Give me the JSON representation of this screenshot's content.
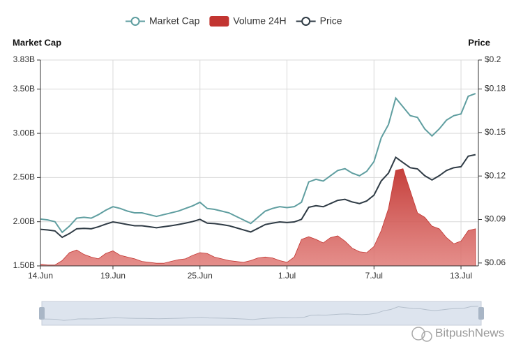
{
  "chart_data": {
    "type": "line",
    "y_label": "Market Cap",
    "y2_label": "Price",
    "x": [
      0,
      0.5,
      1,
      1.5,
      2,
      2.5,
      3,
      3.5,
      4,
      4.5,
      5,
      5.5,
      6,
      6.5,
      7,
      7.5,
      8,
      8.5,
      9,
      9.5,
      10,
      10.5,
      11,
      11.5,
      12,
      12.5,
      13,
      13.5,
      14,
      14.5,
      15,
      15.5,
      16,
      16.5,
      17,
      17.5,
      18,
      18.5,
      19,
      19.5,
      20,
      20.5,
      21,
      21.5,
      22,
      22.5,
      23,
      23.5,
      24,
      24.5,
      25,
      25.5,
      26,
      26.5,
      27,
      27.5,
      28,
      28.5,
      29,
      29.5,
      30
    ],
    "xlim": [
      0,
      30.2
    ],
    "xticks": [
      {
        "value": 0,
        "label": "14.Jun"
      },
      {
        "value": 5,
        "label": "19.Jun"
      },
      {
        "value": 11,
        "label": "25.Jun"
      },
      {
        "value": 17,
        "label": "1.Jul"
      },
      {
        "value": 23,
        "label": "7.Jul"
      },
      {
        "value": 29,
        "label": "13.Jul"
      }
    ],
    "ylim": [
      1.5,
      3.83
    ],
    "yticks": [
      {
        "value": 1.5,
        "label": "1.50B"
      },
      {
        "value": 2.0,
        "label": "2.00B"
      },
      {
        "value": 2.5,
        "label": "2.50B"
      },
      {
        "value": 3.0,
        "label": "3.00B"
      },
      {
        "value": 3.5,
        "label": "3.50B"
      },
      {
        "value": 3.83,
        "label": "3.83B"
      }
    ],
    "y2lim": [
      0.058,
      0.2
    ],
    "y2ticks": [
      {
        "value": 0.06,
        "label": "$0.06"
      },
      {
        "value": 0.09,
        "label": "$0.09"
      },
      {
        "value": 0.12,
        "label": "$0.12"
      },
      {
        "value": 0.15,
        "label": "$0.15"
      },
      {
        "value": 0.18,
        "label": "$0.18"
      },
      {
        "value": 0.2,
        "label": "$0.2"
      }
    ],
    "grid": true,
    "series": [
      {
        "name": "Market Cap",
        "kind": "line",
        "color": "#5f9ea0",
        "values": [
          2.03,
          2.02,
          2.0,
          1.88,
          1.95,
          2.04,
          2.05,
          2.04,
          2.08,
          2.13,
          2.17,
          2.15,
          2.12,
          2.1,
          2.1,
          2.08,
          2.06,
          2.08,
          2.1,
          2.12,
          2.15,
          2.18,
          2.22,
          2.15,
          2.14,
          2.12,
          2.1,
          2.06,
          2.02,
          1.98,
          2.05,
          2.12,
          2.15,
          2.17,
          2.16,
          2.17,
          2.22,
          2.45,
          2.48,
          2.46,
          2.52,
          2.58,
          2.6,
          2.55,
          2.52,
          2.57,
          2.68,
          2.95,
          3.1,
          3.4,
          3.3,
          3.2,
          3.18,
          3.05,
          2.97,
          3.05,
          3.15,
          3.2,
          3.22,
          3.42,
          3.45
        ]
      },
      {
        "name": "Volume 24H",
        "kind": "area",
        "color": "#c23531",
        "values": [
          1.52,
          1.51,
          1.51,
          1.56,
          1.65,
          1.68,
          1.63,
          1.6,
          1.58,
          1.64,
          1.67,
          1.62,
          1.6,
          1.58,
          1.55,
          1.54,
          1.53,
          1.53,
          1.55,
          1.57,
          1.58,
          1.62,
          1.65,
          1.64,
          1.6,
          1.58,
          1.56,
          1.55,
          1.54,
          1.56,
          1.59,
          1.6,
          1.59,
          1.56,
          1.54,
          1.6,
          1.8,
          1.83,
          1.8,
          1.76,
          1.82,
          1.84,
          1.78,
          1.7,
          1.66,
          1.65,
          1.72,
          1.9,
          2.15,
          2.58,
          2.6,
          2.35,
          2.1,
          2.05,
          1.95,
          1.92,
          1.82,
          1.75,
          1.78,
          1.9,
          1.92
        ]
      },
      {
        "name": "Price",
        "kind": "line",
        "axis": "y2",
        "color": "#2f3b45",
        "values": [
          0.0832,
          0.0828,
          0.0821,
          0.0777,
          0.0803,
          0.0836,
          0.0839,
          0.0836,
          0.085,
          0.0868,
          0.0883,
          0.0875,
          0.0865,
          0.0857,
          0.0857,
          0.085,
          0.0843,
          0.085,
          0.0857,
          0.0865,
          0.0875,
          0.0886,
          0.0901,
          0.0875,
          0.0872,
          0.0865,
          0.0857,
          0.0843,
          0.0828,
          0.0814,
          0.0839,
          0.0865,
          0.0875,
          0.0883,
          0.0879,
          0.0883,
          0.0901,
          0.0984,
          0.0995,
          0.0988,
          0.101,
          0.1032,
          0.1039,
          0.1021,
          0.101,
          0.1028,
          0.1068,
          0.1166,
          0.122,
          0.1329,
          0.1293,
          0.1257,
          0.1249,
          0.1202,
          0.1173,
          0.1202,
          0.1238,
          0.1257,
          0.1264,
          0.1337,
          0.1347
        ]
      }
    ],
    "watermark": "BitpushNews"
  }
}
